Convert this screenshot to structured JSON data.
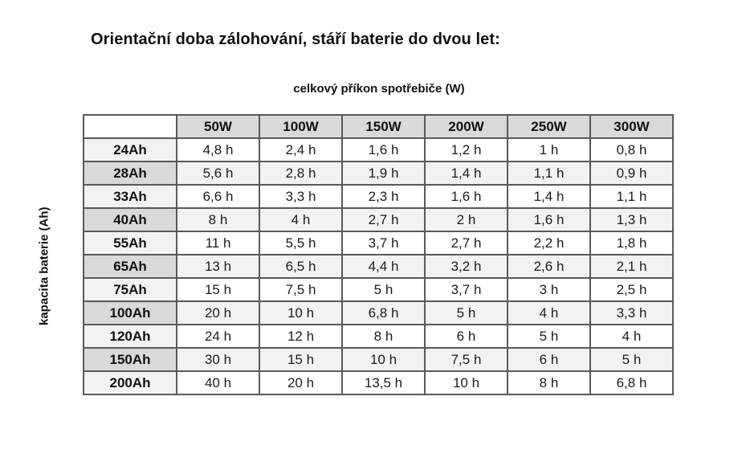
{
  "title": "Orientační doba zálohování, stáří baterie do dvou let:",
  "table": {
    "x_axis_title": "celkový příkon spotřebiče (W)",
    "y_axis_title": "kapacita baterie (Ah)",
    "corner_label": "",
    "columns": [
      "50W",
      "100W",
      "150W",
      "200W",
      "250W",
      "300W"
    ],
    "rows": [
      {
        "label": "24Ah",
        "values": [
          "4,8 h",
          "2,4 h",
          "1,6 h",
          "1,2 h",
          "1 h",
          "0,8 h"
        ]
      },
      {
        "label": "28Ah",
        "values": [
          "5,6 h",
          "2,8 h",
          "1,9 h",
          "1,4 h",
          "1,1 h",
          "0,9 h"
        ]
      },
      {
        "label": "33Ah",
        "values": [
          "6,6 h",
          "3,3 h",
          "2,3 h",
          "1,6 h",
          "1,4 h",
          "1,1 h"
        ]
      },
      {
        "label": "40Ah",
        "values": [
          "8 h",
          "4 h",
          "2,7 h",
          "2 h",
          "1,6 h",
          "1,3 h"
        ]
      },
      {
        "label": "55Ah",
        "values": [
          "11 h",
          "5,5 h",
          "3,7 h",
          "2,7 h",
          "2,2 h",
          "1,8 h"
        ]
      },
      {
        "label": "65Ah",
        "values": [
          "13 h",
          "6,5 h",
          "4,4 h",
          "3,2 h",
          "2,6 h",
          "2,1 h"
        ]
      },
      {
        "label": "75Ah",
        "values": [
          "15 h",
          "7,5 h",
          "5 h",
          "3,7 h",
          "3 h",
          "2,5 h"
        ]
      },
      {
        "label": "100Ah",
        "values": [
          "20 h",
          "10 h",
          "6,8 h",
          "5 h",
          "4 h",
          "3,3 h"
        ]
      },
      {
        "label": "120Ah",
        "values": [
          "24 h",
          "12 h",
          "8 h",
          "6 h",
          "5 h",
          "4 h"
        ]
      },
      {
        "label": "150Ah",
        "values": [
          "30 h",
          "15 h",
          "10 h",
          "7,5 h",
          "6 h",
          "5 h"
        ]
      },
      {
        "label": "200Ah",
        "values": [
          "40 h",
          "20 h",
          "13,5 h",
          "10 h",
          "8 h",
          "6,8 h"
        ]
      }
    ]
  },
  "colors": {
    "border": "#595959",
    "header_bg": "#d9d9d9",
    "row_label_light": "#f2f2f2",
    "row_label_dark": "#d9d9d9",
    "row_even_bg": "#f2f2f2",
    "row_odd_bg": "#ffffff"
  }
}
